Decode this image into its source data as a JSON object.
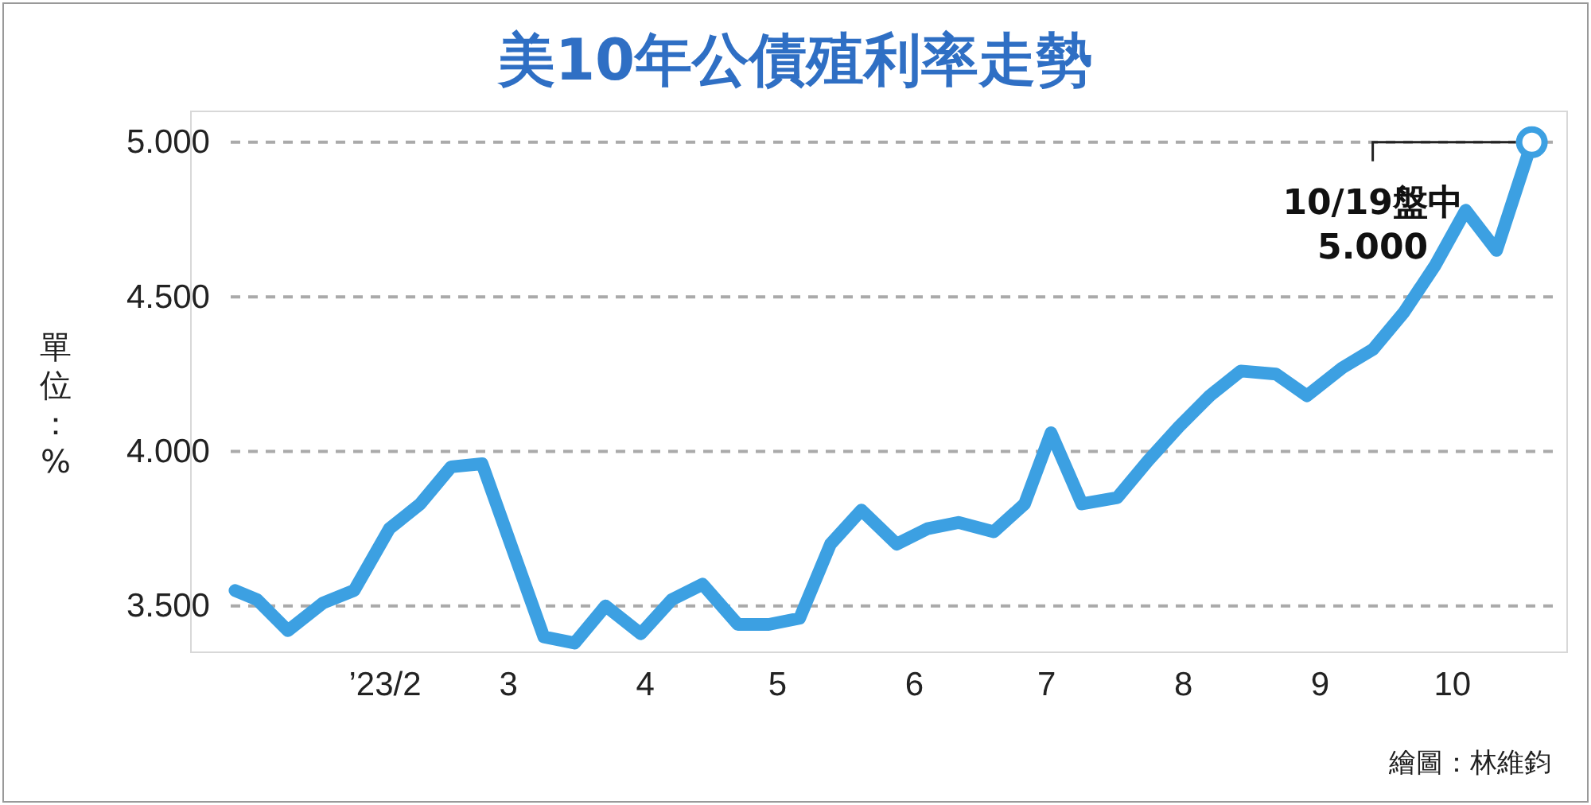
{
  "chart_data": {
    "type": "line",
    "title": "美10年公債殖利率走勢",
    "ylabel": "單位：%",
    "x": [
      "2022-12-29",
      "2023-01-03",
      "2023-01-10",
      "2023-01-18",
      "2023-01-25",
      "2023-02-02",
      "2023-02-09",
      "2023-02-16",
      "2023-02-23",
      "2023-03-09",
      "2023-03-16",
      "2023-03-23",
      "2023-03-31",
      "2023-04-07",
      "2023-04-14",
      "2023-04-22",
      "2023-04-29",
      "2023-05-06",
      "2023-05-13",
      "2023-05-20",
      "2023-05-28",
      "2023-06-04",
      "2023-06-11",
      "2023-06-19",
      "2023-06-26",
      "2023-07-02",
      "2023-07-09",
      "2023-07-17",
      "2023-07-24",
      "2023-07-31",
      "2023-08-07",
      "2023-08-14",
      "2023-08-22",
      "2023-08-29",
      "2023-09-06",
      "2023-09-13",
      "2023-09-20",
      "2023-09-27",
      "2023-10-04",
      "2023-10-11",
      "2023-10-19"
    ],
    "series": [
      {
        "color": "#3ca0e2",
        "values": [
          3.55,
          3.52,
          3.42,
          3.51,
          3.55,
          3.75,
          3.83,
          3.95,
          3.96,
          3.4,
          3.38,
          3.5,
          3.41,
          3.52,
          3.57,
          3.44,
          3.44,
          3.46,
          3.7,
          3.81,
          3.7,
          3.75,
          3.77,
          3.74,
          3.83,
          4.06,
          3.83,
          3.85,
          3.97,
          4.08,
          4.18,
          4.26,
          4.25,
          4.18,
          4.27,
          4.33,
          4.45,
          4.6,
          4.78,
          4.65,
          5.0
        ]
      }
    ],
    "xlim": [
      "2022-12-19",
      "2023-10-27"
    ],
    "xticks": [
      {
        "value": "2023-02-01",
        "label": "’23/2"
      },
      {
        "value": "2023-03-01",
        "label": "3"
      },
      {
        "value": "2023-04-01",
        "label": "4"
      },
      {
        "value": "2023-05-01",
        "label": "5"
      },
      {
        "value": "2023-06-01",
        "label": "6"
      },
      {
        "value": "2023-07-01",
        "label": "7"
      },
      {
        "value": "2023-08-01",
        "label": "8"
      },
      {
        "value": "2023-09-01",
        "label": "9"
      },
      {
        "value": "2023-10-01",
        "label": "10"
      }
    ],
    "ylim": [
      3.35,
      5.1
    ],
    "yticks": [
      {
        "value": 3.5,
        "label": "3.500"
      },
      {
        "value": 4,
        "label": "4.000"
      },
      {
        "value": 4.5,
        "label": "4.500"
      },
      {
        "value": 5,
        "label": "5.000"
      }
    ],
    "grid": "y",
    "line_style": "solid",
    "annotations": [
      {
        "text": "10/19盤中\n5.000",
        "x": "2023-10-19",
        "y": 5.0
      },
      "繪圖：林維鈞"
    ]
  }
}
